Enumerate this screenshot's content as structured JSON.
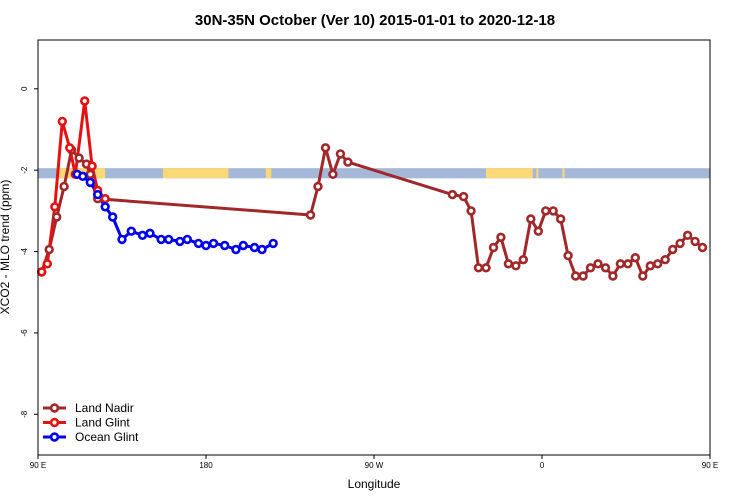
{
  "chart_data": {
    "type": "line",
    "title": "30N-35N October (Ver 10)   2015-01-01 to 2020-12-18",
    "xlabel": "Longitude",
    "ylabel": "XCO2 - MLO trend (ppm)",
    "xlim": [
      90,
      450
    ],
    "ylim": [
      -9,
      1.2
    ],
    "x_ticks": [
      {
        "value": 90,
        "label": "90 E"
      },
      {
        "value": 180,
        "label": "180"
      },
      {
        "value": 270,
        "label": "90 W"
      },
      {
        "value": 360,
        "label": "0"
      },
      {
        "value": 450,
        "label": "90 E"
      },
      {
        "value": 540,
        "label": "180"
      }
    ],
    "y_ticks": [
      {
        "value": 0,
        "label": "0"
      },
      {
        "value": -2,
        "label": "-2"
      },
      {
        "value": -4,
        "label": "-4"
      },
      {
        "value": -6,
        "label": "-6"
      },
      {
        "value": -8,
        "label": "-8"
      }
    ],
    "grid": false,
    "legend_position": "bottom-left",
    "land_ocean_strip": {
      "y_range": [
        -2.2,
        -1.95
      ],
      "ocean_color": "#a5b8d8",
      "land_color": "#fcd877",
      "land_segments": [
        [
          -3,
          -2
        ],
        [
          11,
          12
        ],
        [
          101,
          126
        ],
        [
          157,
          192
        ],
        [
          212,
          215
        ],
        [
          330,
          355
        ],
        [
          371,
          372
        ]
      ]
    },
    "series": [
      {
        "name": "Land Nadir",
        "color": "#a0282a",
        "x": [
          92,
          96,
          100,
          104,
          108,
          112,
          116,
          118,
          122,
          236,
          240,
          244,
          248,
          252,
          256,
          312,
          318,
          322,
          326,
          330,
          334,
          338,
          342,
          346,
          350,
          354,
          358,
          362,
          366,
          370,
          374,
          378,
          382,
          386,
          390,
          394,
          398,
          402,
          406,
          410,
          414,
          418,
          422,
          426,
          430,
          434,
          438,
          442,
          446
        ],
        "y": [
          -4.5,
          -3.95,
          -3.15,
          -2.4,
          -1.5,
          -1.7,
          -1.85,
          -2.1,
          -2.7,
          -3.1,
          -2.4,
          -1.45,
          -2.1,
          -1.6,
          -1.8,
          -2.6,
          -2.65,
          -3.0,
          -4.4,
          -4.4,
          -3.9,
          -3.65,
          -4.3,
          -4.35,
          -4.2,
          -3.2,
          -3.5,
          -3.0,
          -3.0,
          -3.2,
          -4.1,
          -4.6,
          -4.6,
          -4.4,
          -4.3,
          -4.4,
          -4.6,
          -4.3,
          -4.3,
          -4.15,
          -4.6,
          -4.35,
          -4.3,
          -4.2,
          -3.95,
          -3.8,
          -3.6,
          -3.75,
          -3.9
        ]
      },
      {
        "name": "Land Glint",
        "color": "#e41212",
        "x": [
          92,
          95,
          99,
          103,
          107,
          110,
          115,
          119,
          122,
          126
        ],
        "y": [
          -4.5,
          -4.3,
          -2.9,
          -0.8,
          -1.45,
          -2.1,
          -0.3,
          -1.9,
          -2.5,
          -2.7
        ]
      },
      {
        "name": "Ocean Glint",
        "color": "#0000ee",
        "x": [
          111,
          114,
          118,
          122,
          126,
          130,
          135,
          140,
          146,
          150,
          156,
          160,
          166,
          170,
          176,
          180,
          184,
          190,
          196,
          200,
          206,
          210,
          216
        ],
        "y": [
          -2.1,
          -2.15,
          -2.3,
          -2.6,
          -2.9,
          -3.15,
          -3.7,
          -3.5,
          -3.6,
          -3.55,
          -3.7,
          -3.7,
          -3.75,
          -3.7,
          -3.8,
          -3.85,
          -3.8,
          -3.85,
          -3.95,
          -3.85,
          -3.9,
          -3.95,
          -3.8
        ]
      }
    ]
  }
}
